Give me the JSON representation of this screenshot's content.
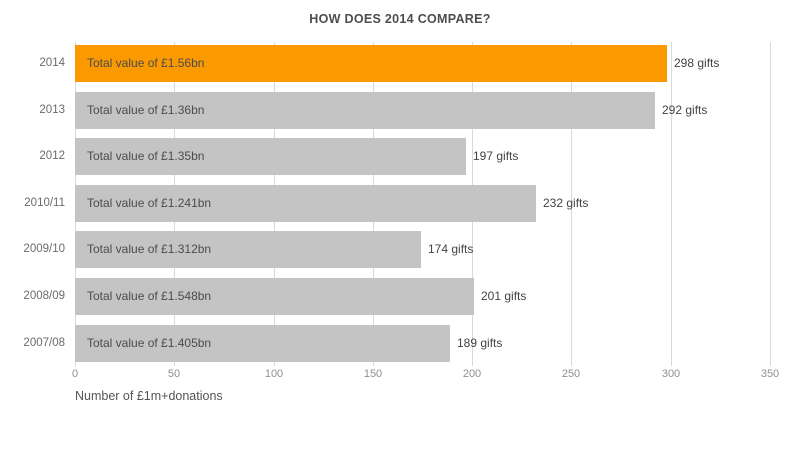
{
  "chart_data": {
    "type": "bar",
    "orientation": "horizontal",
    "title": "HOW DOES 2014 COMPARE?",
    "xlabel": "Number of £1m+donations",
    "xlim": [
      0,
      350
    ],
    "xticks": [
      0,
      50,
      100,
      150,
      200,
      250,
      300,
      350
    ],
    "grid": "vertical",
    "legend": "none",
    "categories": [
      "2014",
      "2013",
      "2012",
      "2010/11",
      "2009/10",
      "2008/09",
      "2007/08"
    ],
    "values": [
      298,
      292,
      197,
      232,
      174,
      201,
      189
    ],
    "bar_labels": [
      "Total value of £1.56bn",
      "Total value of £1.36bn",
      "Total value of £1.35bn",
      "Total value of £1.241bn",
      "Total value of £1.312bn",
      "Total value of £1.548bn",
      "Total value of £1.405bn"
    ],
    "value_labels": [
      "298 gifts",
      "292 gifts",
      "197 gifts",
      "232 gifts",
      "174 gifts",
      "201 gifts",
      "189 gifts"
    ],
    "highlight_index": 0,
    "colors": {
      "highlight_bar": "#fa9a00",
      "default_bar": "#c4c4c4",
      "gridline": "#d9d9d9",
      "background": "#ffffff"
    }
  }
}
